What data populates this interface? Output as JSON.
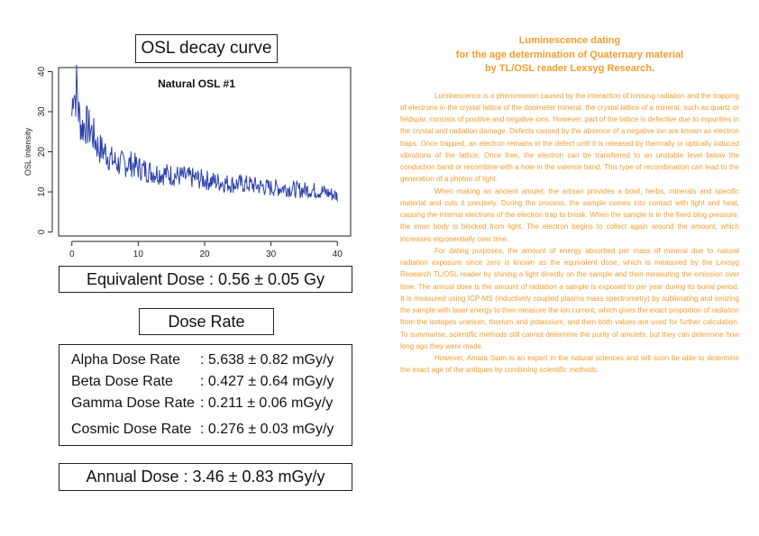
{
  "left_panel": {
    "title": "OSL decay curve",
    "equivalent_dose": "Equivalent Dose : 0.56 ± 0.05 Gy",
    "dose_rate_title": "Dose Rate",
    "dose_rates": [
      {
        "label": "Alpha Dose Rate",
        "value": ": 5.638 ± 0.82 mGy/y"
      },
      {
        "label": "Beta Dose Rate",
        "value": ": 0.427 ± 0.64 mGy/y"
      },
      {
        "label": "Gamma Dose Rate",
        "value": ": 0.211 ± 0.06 mGy/y"
      },
      {
        "label": "Cosmic Dose Rate",
        "value": ": 0.276 ± 0.03 mGy/y"
      }
    ],
    "annual_dose": "Annual Dose : 3.46 ± 0.83 mGy/y"
  },
  "chart_data": {
    "type": "line",
    "title": "Natural OSL #1",
    "xlabel": "",
    "ylabel": "OSL intensity",
    "xlim": [
      -2,
      42
    ],
    "ylim": [
      -1,
      41
    ],
    "xticks": [
      "0",
      "10",
      "20",
      "30",
      "40"
    ],
    "yticks": [
      "0",
      "10",
      "20",
      "30",
      "40"
    ],
    "line_color": "#2b3faa",
    "grid": false,
    "series": [
      {
        "x": [
          0,
          0.25,
          0.5,
          0.75,
          1,
          1.5,
          2,
          2.5,
          3,
          4,
          5,
          6,
          7,
          8,
          9,
          10,
          12,
          14,
          16,
          18,
          20,
          22,
          24,
          26,
          28,
          30,
          32,
          34,
          36,
          38,
          40
        ],
        "values": [
          29,
          38,
          33,
          37,
          30,
          26,
          27,
          26,
          25,
          21,
          20,
          18,
          17,
          17,
          17,
          16,
          15,
          14.5,
          14,
          13.5,
          13,
          12.5,
          12,
          12,
          11.5,
          11,
          11,
          10.5,
          10.5,
          10,
          9
        ]
      }
    ]
  },
  "right_panel": {
    "heading_lines": [
      "Luminescence dating",
      "for the age determination of Quaternary material",
      "by TL/OSL reader Lexsyg Research."
    ],
    "paragraphs": [
      "Luminescence is a phenomenon caused by the interaction of ionising radiation and the trapping of electrons in the crystal lattice of the dosimeter mineral. the crystal lattice of a mineral, such as quartz or feldspar, consists of positive and negative ions. However, part of the lattice is defective due to impurities in the crystal and radiation damage. Defects caused by the absence of a negative ion are known as electron traps. Once trapped, an electron remains in the defect until it is released by thermally or optically induced vibrations of the lattice. Once free, the electron can be transferred to an unstable level below the conduction band or recombine with a hole in the valence band. This type of recombination can lead to the generation of a photon of light.",
      "When making an ancient amulet, the artisan provides a bowl, herbs, minerals and specific material and cuts it precisely. During the process, the sample comes into contact with light and heat, causing the internal electrons of the electron trap to break. When the sample is in the fixed blog pressure, the inner body is blocked from light. The electron begins to collect again around the amount, which increases exponentially over time.",
      "For dating purposes, the amount of energy absorbed per mass of mineral due to natural radiation exposure since zero is known as the equivalent dose, which is measured by the Lexsyg Research TL/OSL reader by shining a light directly on the sample and then measuring the emission over time. The annual dose is the amount of radiation a sample is exposed to per year during its burial period. It is measured using ICP-MS (inductively coupled plasma mass spectrometry) by sublimating and ionizing the sample with laser energy to then measure the ion current, which gives the exact proportion of radiation from the isotopes uranium, thorium and potassium, and then both values are used for further calculation. To summarise, scientific methods still cannot determine the purity of amulets, but they can determine how long ago they were made.",
      "However, Amata Siam is an expert in the natural sciences and will soon be able to determine the exact age of the antiques by combining scientific methods."
    ]
  }
}
